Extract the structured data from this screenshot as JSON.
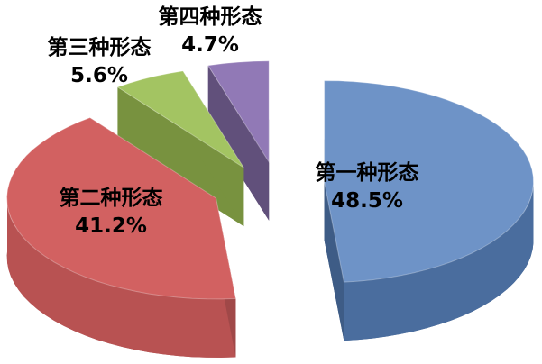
{
  "chart_data": {
    "type": "pie",
    "style": "3d-exploded-pie",
    "title": "",
    "background": "#FFFFFF",
    "label_color": "#000000",
    "legend_position": "none",
    "slices": [
      {
        "label": "第一种形态",
        "value": 48.5,
        "display": "48.5%",
        "color": "#6E93C7",
        "side_color": "#4A6D9E",
        "dark_color": "#3E5C86"
      },
      {
        "label": "第二种形态",
        "value": 41.2,
        "display": "41.2%",
        "color": "#D26161",
        "side_color": "#B85252",
        "dark_color": "#A04848"
      },
      {
        "label": "第三种形态",
        "value": 5.6,
        "display": "5.6%",
        "color": "#A3C462",
        "side_color": "#7A9440",
        "dark_color": "#78923F"
      },
      {
        "label": "第四种形态",
        "value": 4.7,
        "display": "4.7%",
        "color": "#9179B6",
        "side_color": "#64527E",
        "dark_color": "#61507B"
      }
    ]
  }
}
